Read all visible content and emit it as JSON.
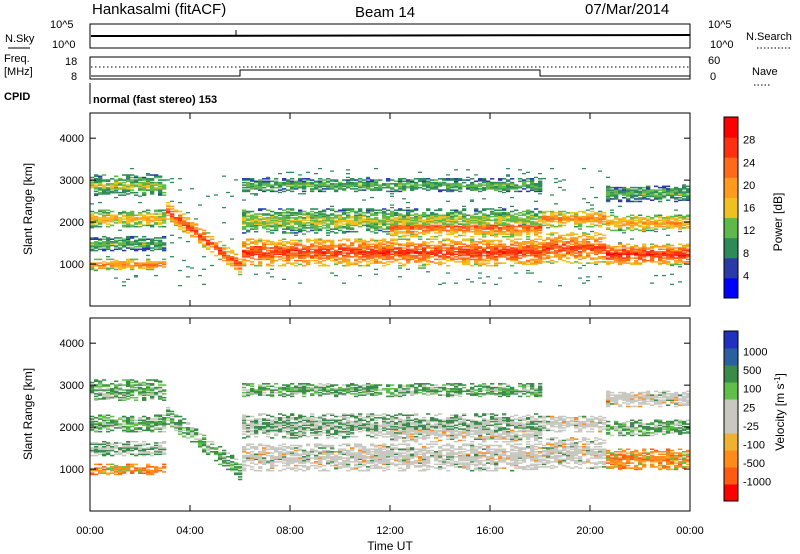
{
  "header": {
    "station": "Hankasalmi (fitACF)",
    "beam": "Beam 14",
    "date": "07/Mar/2014"
  },
  "top_panels": {
    "nsky_label": "N.Sky",
    "nsky_ticks": [
      "10^5",
      "10^0"
    ],
    "nsearch_label": "N.Search",
    "nsearch_ticks": [
      "10^5",
      "10^0"
    ],
    "freq_label_1": "Freq.",
    "freq_label_2": "[MHz]",
    "freq_ticks": [
      "18",
      "8"
    ],
    "nave_label": "Nave",
    "nave_ticks": [
      "60",
      "0"
    ],
    "cpid_label": "CPID",
    "cpid_text": "normal (fast stereo) 153"
  },
  "colors": {
    "power_scale": [
      "#0000ff",
      "#2a3ba8",
      "#2f8a5a",
      "#5fb84a",
      "#f0c020",
      "#ff9a1e",
      "#ff6a1a",
      "#ff3010",
      "#ff0000"
    ],
    "velocity_scale": [
      "#ff0000",
      "#ff5a12",
      "#ff8c1a",
      "#f0b030",
      "#c8c8c0",
      "#c8c8c0",
      "#5fbf4a",
      "#3a8a4a",
      "#2a60a0",
      "#2030c0"
    ]
  },
  "chart_data": [
    {
      "type": "heatmap",
      "name": "power",
      "ylabel": "Slant Range [km]",
      "yticks": [
        "4000",
        "3000",
        "2000",
        "1000"
      ],
      "ylim": [
        0,
        4600
      ],
      "xticks": [
        "00:00",
        "04:00",
        "08:00",
        "12:00",
        "16:00",
        "20:00",
        "00:00"
      ],
      "colorbar_label": "Power [dB]",
      "colorbar_ticks": [
        "28",
        "24",
        "20",
        "16",
        "12",
        "8",
        "4"
      ],
      "colorbar_range": [
        0,
        32
      ]
    },
    {
      "type": "heatmap",
      "name": "velocity",
      "ylabel": "Slant Range [km]",
      "yticks": [
        "4000",
        "3000",
        "2000",
        "1000"
      ],
      "ylim": [
        0,
        4600
      ],
      "xticks": [
        "00:00",
        "04:00",
        "08:00",
        "12:00",
        "16:00",
        "20:00",
        "00:00"
      ],
      "xlabel": "Time UT",
      "colorbar_label": "Velocity [m s",
      "colorbar_label_sup": "-1",
      "colorbar_label_end": "]",
      "colorbar_ticks": [
        "1000",
        "500",
        "100",
        "25",
        "-25",
        "-100",
        "-500",
        "-1000"
      ]
    }
  ]
}
